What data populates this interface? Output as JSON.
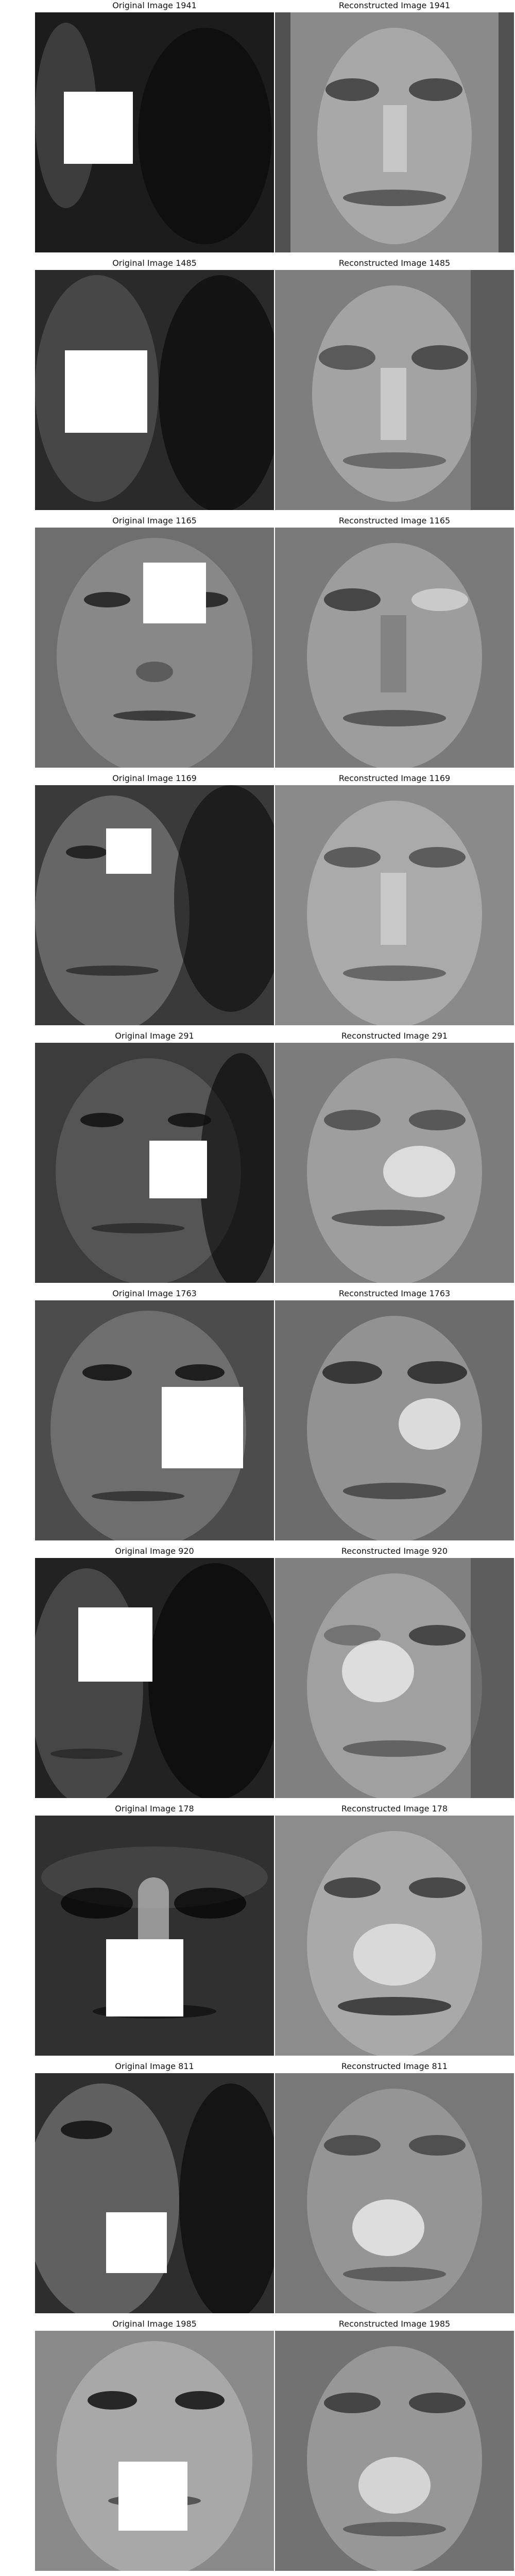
{
  "figure": {
    "rows": [
      {
        "original_title": "Original Image 1941",
        "reconstructed_title": "Reconstructed Image 1941",
        "original_tone": "#1c1c1c",
        "reconstructed_tone": "#8a8a8a"
      },
      {
        "original_title": "Original Image 1485",
        "reconstructed_title": "Reconstructed Image 1485",
        "original_tone": "#2a2a2a",
        "reconstructed_tone": "#7e7e7e"
      },
      {
        "original_title": "Original Image 1165",
        "reconstructed_title": "Reconstructed Image 1165",
        "original_tone": "#6e6e6e",
        "reconstructed_tone": "#7a7a7a"
      },
      {
        "original_title": "Original Image 1169",
        "reconstructed_title": "Reconstructed Image 1169",
        "original_tone": "#3a3a3a",
        "reconstructed_tone": "#8a8a8a"
      },
      {
        "original_title": "Original Image 291",
        "reconstructed_title": "Reconstructed Image 291",
        "original_tone": "#3c3c3c",
        "reconstructed_tone": "#7c7c7c"
      },
      {
        "original_title": "Original Image 1763",
        "reconstructed_title": "Reconstructed Image 1763",
        "original_tone": "#4c4c4c",
        "reconstructed_tone": "#6c6c6c"
      },
      {
        "original_title": "Original Image 920",
        "reconstructed_title": "Reconstructed Image 920",
        "original_tone": "#222222",
        "reconstructed_tone": "#808080"
      },
      {
        "original_title": "Original Image 178",
        "reconstructed_title": "Reconstructed Image 178",
        "original_tone": "#303030",
        "reconstructed_tone": "#8c8c8c"
      },
      {
        "original_title": "Original Image 811",
        "reconstructed_title": "Reconstructed Image 811",
        "original_tone": "#2e2e2e",
        "reconstructed_tone": "#787878"
      },
      {
        "original_title": "Original Image 1985",
        "reconstructed_title": "Reconstructed Image 1985",
        "original_tone": "#8a8a8a",
        "reconstructed_tone": "#727272"
      }
    ]
  }
}
